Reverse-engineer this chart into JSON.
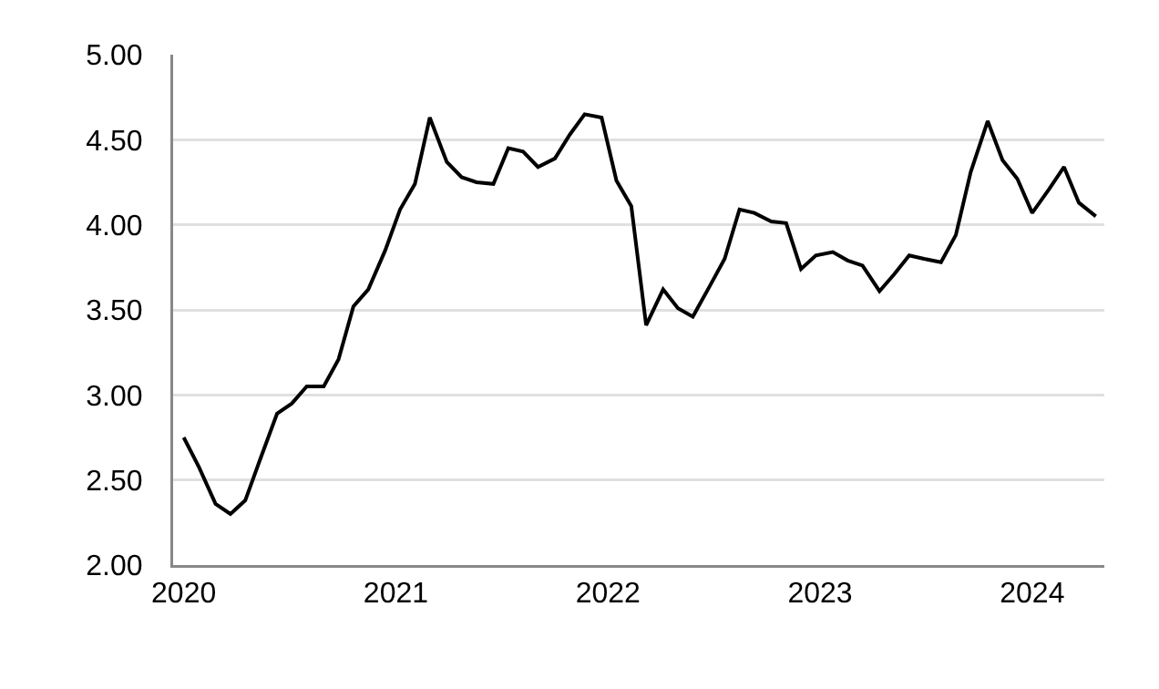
{
  "chart_data": {
    "type": "line",
    "x": [
      2020.0,
      2020.07,
      2020.15,
      2020.22,
      2020.29,
      2020.36,
      2020.44,
      2020.51,
      2020.58,
      2020.66,
      2020.73,
      2020.8,
      2020.87,
      2020.95,
      2021.02,
      2021.09,
      2021.16,
      2021.24,
      2021.31,
      2021.38,
      2021.46,
      2021.53,
      2021.6,
      2021.67,
      2021.75,
      2021.82,
      2021.89,
      2021.97,
      2022.04,
      2022.11,
      2022.18,
      2022.26,
      2022.33,
      2022.4,
      2022.48,
      2022.55,
      2022.62,
      2022.69,
      2022.77,
      2022.84,
      2022.91,
      2022.98,
      2023.06,
      2023.13,
      2023.2,
      2023.28,
      2023.35,
      2023.42,
      2023.49,
      2023.57,
      2023.64,
      2023.71,
      2023.79,
      2023.86,
      2023.93,
      2024.0,
      2024.08,
      2024.15,
      2024.22,
      2024.3
    ],
    "series": [
      {
        "color": "#000000",
        "values": [
          2.75,
          2.58,
          2.36,
          2.3,
          2.38,
          2.62,
          2.89,
          2.95,
          3.05,
          3.05,
          3.21,
          3.52,
          3.62,
          3.85,
          4.09,
          4.24,
          4.63,
          4.37,
          4.28,
          4.25,
          4.24,
          4.45,
          4.43,
          4.34,
          4.39,
          4.53,
          4.65,
          4.63,
          4.26,
          4.11,
          3.41,
          3.62,
          3.51,
          3.46,
          3.64,
          3.8,
          4.09,
          4.07,
          4.02,
          4.01,
          3.74,
          3.82,
          3.84,
          3.79,
          3.76,
          3.61,
          3.71,
          3.82,
          3.8,
          3.78,
          3.94,
          4.31,
          4.61,
          4.38,
          4.27,
          4.07,
          4.21,
          4.34,
          4.13,
          4.05
        ]
      }
    ],
    "xlim": [
      2019.95,
      2024.34
    ],
    "xticks": [
      2020,
      2021,
      2022,
      2023,
      2024
    ],
    "ylim": [
      2,
      5
    ],
    "yticks": [
      {
        "value": 2,
        "label": "2.00"
      },
      {
        "value": 2.5,
        "label": "2.50"
      },
      {
        "value": 3,
        "label": "3.00"
      },
      {
        "value": 3.5,
        "label": "3.50"
      },
      {
        "value": 4,
        "label": "4.00"
      },
      {
        "value": 4.5,
        "label": "4.50"
      },
      {
        "value": 5,
        "label": "5.00"
      }
    ],
    "grid": "y",
    "marker": "none",
    "line_style": "solid"
  }
}
